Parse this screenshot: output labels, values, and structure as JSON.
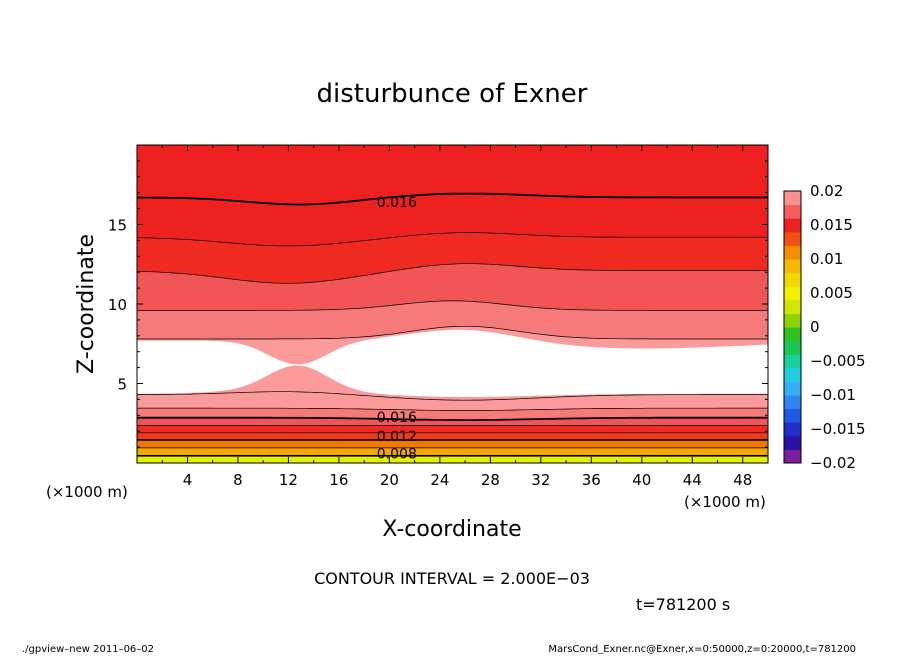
{
  "chart_data": {
    "type": "heatmap",
    "title": "disturbunce of Exner",
    "xlabel": "X-coordinate",
    "ylabel": "Z-coordinate",
    "x_unit": "(×1000 m)",
    "y_unit": "(×1000 m)",
    "xlim": [
      0,
      50
    ],
    "ylim": [
      0,
      20
    ],
    "x_ticks": [
      "4",
      "8",
      "12",
      "16",
      "20",
      "24",
      "28",
      "32",
      "36",
      "40",
      "44",
      "48"
    ],
    "y_ticks": [
      "5",
      "10",
      "15"
    ],
    "x_tick_values": [
      4,
      8,
      12,
      16,
      20,
      24,
      28,
      32,
      36,
      40,
      44,
      48
    ],
    "y_tick_values": [
      5,
      10,
      15
    ],
    "colorbar": {
      "labels": [
        "0.02",
        "0.015",
        "0.01",
        "0.005",
        "0",
        "−0.005",
        "−0.01",
        "−0.015",
        "−0.02"
      ],
      "levels": [
        -0.02,
        -0.018,
        -0.016,
        -0.014,
        -0.012,
        -0.01,
        -0.008,
        -0.006,
        -0.004,
        -0.002,
        0,
        0.002,
        0.004,
        0.006,
        0.008,
        0.01,
        0.012,
        0.014,
        0.016,
        0.018,
        0.02
      ],
      "colors": [
        "#7a1fa0",
        "#2a10a8",
        "#1f2fc9",
        "#1f58e6",
        "#2f86f2",
        "#33b0f5",
        "#20d0e0",
        "#18d0a0",
        "#18c850",
        "#30c020",
        "#8cd400",
        "#d4e400",
        "#f0f000",
        "#f0d800",
        "#f5b800",
        "#f58c00",
        "#f05010",
        "#ee2020",
        "#f55c5c",
        "#fa9090"
      ]
    },
    "bands_bottom_to_top": [
      {
        "level_range": [
          0.006,
          0.008
        ],
        "color": "#e6ef00"
      },
      {
        "level_range": [
          0.008,
          0.01
        ],
        "color": "#f6d200"
      },
      {
        "level_range": [
          0.01,
          0.012
        ],
        "color": "#f5a600"
      },
      {
        "level_range": [
          0.012,
          0.014
        ],
        "color": "#f37800"
      },
      {
        "level_range": [
          0.014,
          0.016
        ],
        "color": "#ee3a16"
      },
      {
        "level_range": [
          0.016,
          0.018
        ],
        "color": "#ef2a20"
      },
      {
        "level_range": [
          0.018,
          0.02
        ],
        "color": "#f25555"
      },
      {
        "level_range": [
          0.02,
          0.022
        ],
        "color": "#f77a7a"
      },
      {
        "level_range": [
          0.022,
          0.024
        ],
        "color": "#fa9a9a"
      },
      {
        "level_range": [
          0.024,
          0.026
        ],
        "color": "#ffffff"
      }
    ],
    "contour_labels": [
      {
        "text": "0.016",
        "x": 19,
        "z": 16.4
      },
      {
        "text": "0.016",
        "x": 19,
        "z": 2.9
      },
      {
        "text": "0.012",
        "x": 19,
        "z": 1.7
      },
      {
        "text": "0.008",
        "x": 19,
        "z": 0.6
      }
    ],
    "contour_interval_text": "CONTOUR INTERVAL = 2.000E−03",
    "time_text": "t=781200 s"
  },
  "footer": {
    "left": "./gpview–new   2011–06–02",
    "right": "MarsCond_Exner.nc@Exner,x=0:50000,z=0:20000,t=781200"
  }
}
